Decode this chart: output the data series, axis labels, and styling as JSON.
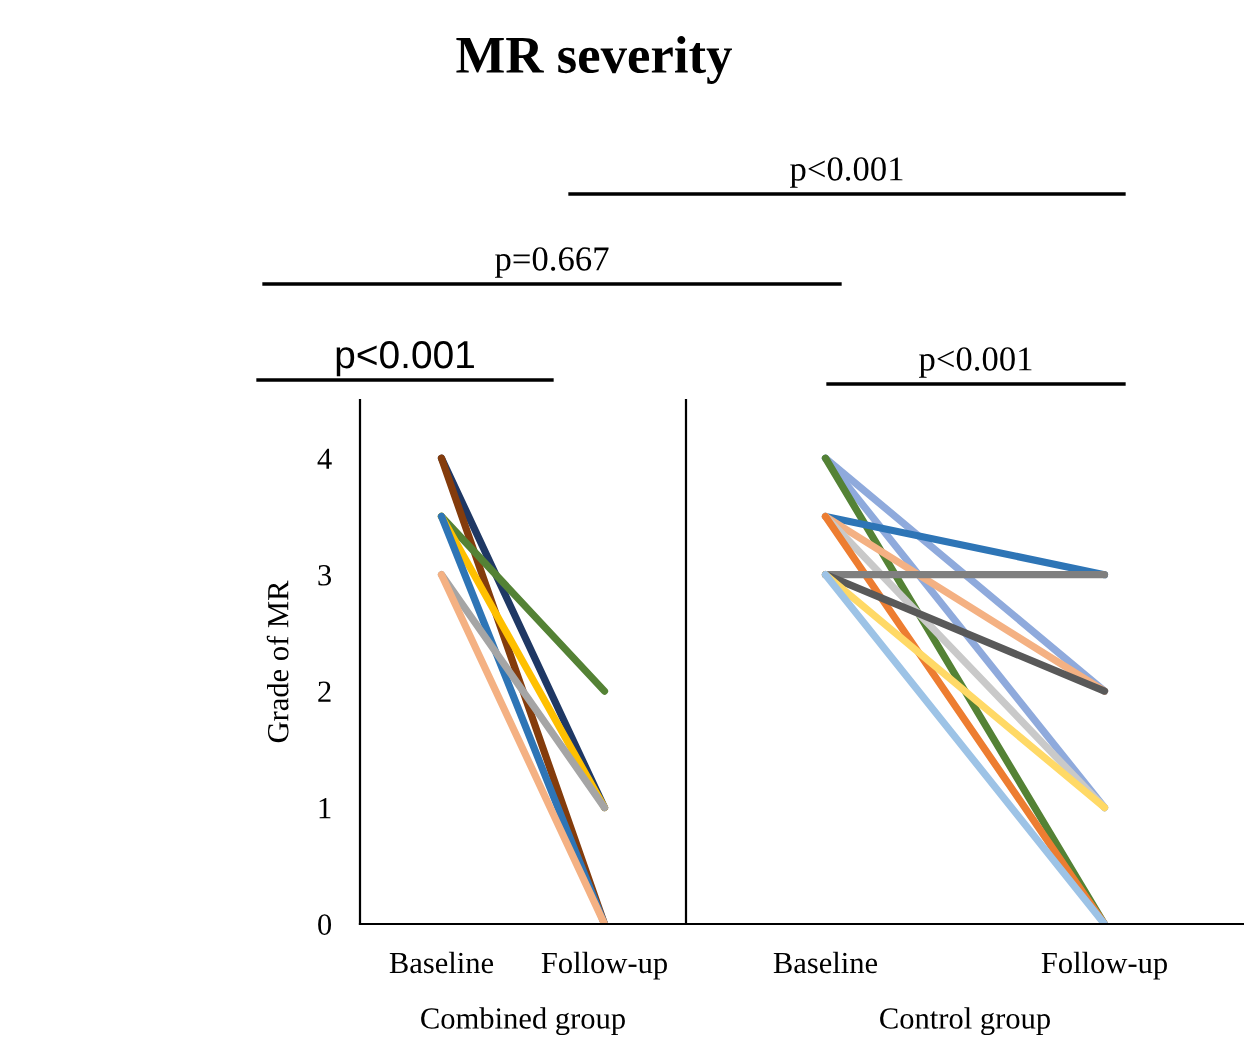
{
  "chart_data": [
    {
      "type": "line",
      "title": "MR severity",
      "xlabel": "Combined group",
      "ylabel": "Grade of MR",
      "categories": [
        "Baseline",
        "Follow-up"
      ],
      "ylim": [
        0,
        4.5
      ],
      "yticks": [
        0,
        1,
        2,
        3,
        4
      ],
      "grid": false,
      "legend": false,
      "annotations": [
        "p<0.001",
        "p=0.667",
        "p<0.001"
      ],
      "series": [
        {
          "color": "#1f3864",
          "values": [
            4,
            1
          ]
        },
        {
          "color": "#843c0c",
          "values": [
            4,
            0
          ]
        },
        {
          "color": "#548235",
          "values": [
            3.5,
            2
          ]
        },
        {
          "color": "#ffc000",
          "values": [
            3.5,
            1
          ]
        },
        {
          "color": "#2e75b6",
          "values": [
            3.5,
            0
          ]
        },
        {
          "color": "#a5a5a5",
          "values": [
            3,
            1
          ]
        },
        {
          "color": "#f4b183",
          "values": [
            3,
            0
          ]
        }
      ]
    },
    {
      "type": "line",
      "xlabel": "Control group",
      "categories": [
        "Baseline",
        "Follow-up"
      ],
      "ylim": [
        0,
        4.5
      ],
      "yticks": [
        0,
        1,
        2,
        3,
        4
      ],
      "tick_labels": "x",
      "grid": false,
      "legend": false,
      "annotations": [
        "p<0.001"
      ],
      "series": [
        {
          "color": "#8faadc",
          "values": [
            4,
            2
          ]
        },
        {
          "color": "#8faadc",
          "values": [
            4,
            1
          ]
        },
        {
          "color": "#548235",
          "values": [
            4,
            0
          ]
        },
        {
          "color": "#2e75b6",
          "values": [
            3.5,
            3
          ]
        },
        {
          "color": "#f4b183",
          "values": [
            3.5,
            2
          ]
        },
        {
          "color": "#c9c9c9",
          "values": [
            3.5,
            1
          ]
        },
        {
          "color": "#ed7d31",
          "values": [
            3.5,
            0
          ]
        },
        {
          "color": "#7f7f7f",
          "values": [
            3,
            3
          ]
        },
        {
          "color": "#595959",
          "values": [
            3,
            2
          ]
        },
        {
          "color": "#ffd966",
          "values": [
            3,
            1
          ]
        },
        {
          "color": "#9dc3e6",
          "values": [
            3,
            0
          ]
        }
      ]
    }
  ]
}
